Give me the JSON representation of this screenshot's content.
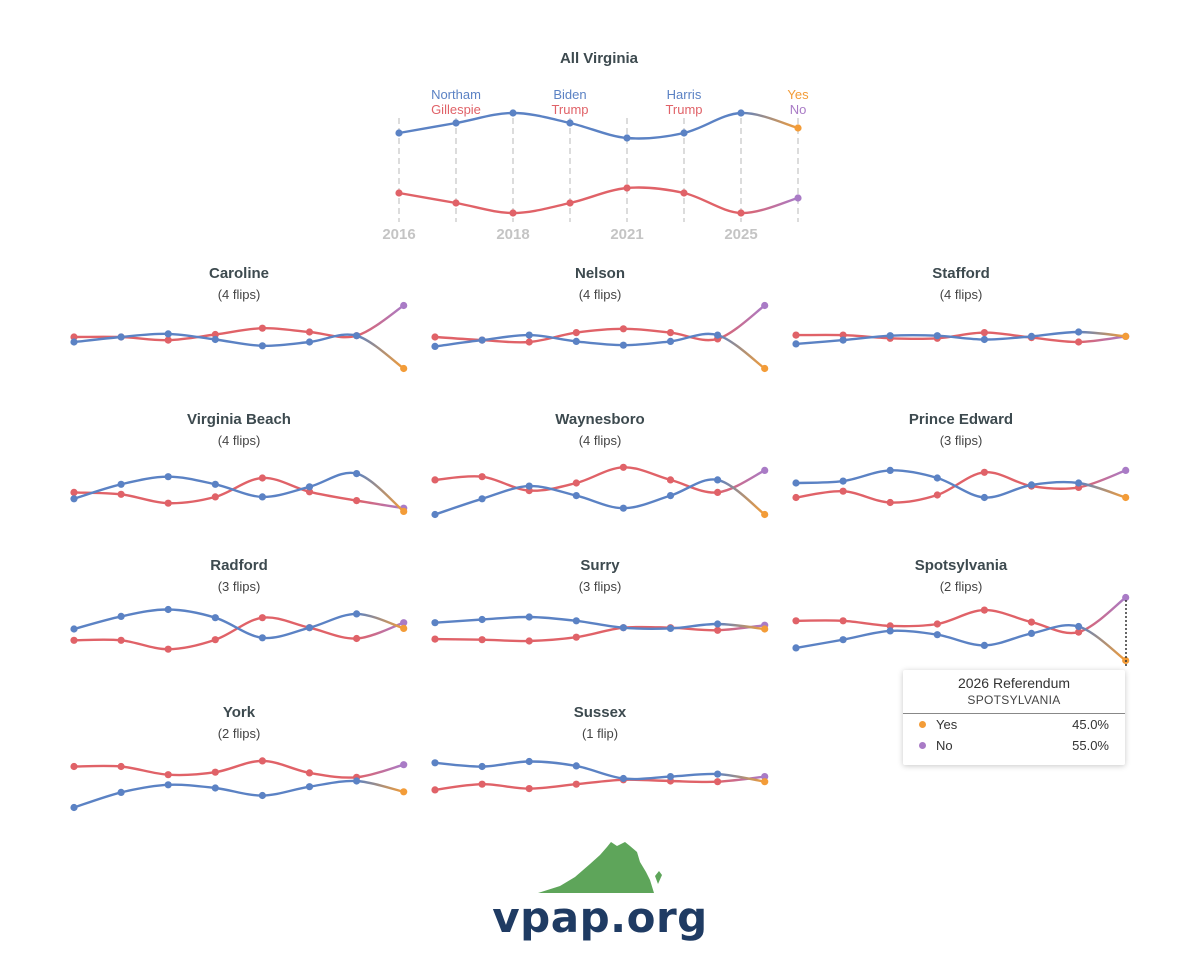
{
  "colors": {
    "dem": "#5b82c4",
    "rep": "#e06268",
    "yes": "#f39c38",
    "no": "#a97bc6"
  },
  "chart_data": {
    "type": "line",
    "overview": {
      "title": "All Virginia",
      "x": [
        2016,
        2017,
        2018,
        2019,
        2021,
        2022,
        2025,
        2026
      ],
      "tick_labels": [
        "2016",
        "2018",
        "2021",
        "2025"
      ],
      "contests": [
        {
          "top": "Northam",
          "bottom": "Gillespie"
        },
        {
          "top": "Biden",
          "bottom": "Trump"
        },
        {
          "top": "Harris",
          "bottom": "Trump"
        },
        {
          "top": "Yes",
          "bottom": "No"
        }
      ],
      "blue": [
        53,
        54,
        55,
        54,
        52.5,
        53,
        55,
        53.5
      ],
      "red": [
        47,
        46,
        45,
        46,
        47.5,
        47,
        45,
        46.5
      ]
    },
    "counties": [
      {
        "name": "Caroline",
        "flips": "(4 flips)",
        "blue": [
          49.2,
          50,
          50.5,
          49.6,
          48.6,
          49.2,
          50.2,
          45
        ],
        "red": [
          50,
          50,
          49.5,
          50.4,
          51.4,
          50.8,
          50.2,
          55
        ]
      },
      {
        "name": "Nelson",
        "flips": "(4 flips)",
        "blue": [
          48.5,
          49.5,
          50.3,
          49.3,
          48.7,
          49.3,
          50.3,
          45
        ],
        "red": [
          50,
          49.5,
          49.2,
          50.7,
          51.3,
          50.7,
          49.7,
          55
        ]
      },
      {
        "name": "Stafford",
        "flips": "(4 flips)",
        "blue": [
          48.9,
          49.5,
          50.2,
          50.2,
          49.6,
          50.1,
          50.8,
          50.1
        ],
        "red": [
          50.3,
          50.3,
          49.8,
          49.8,
          50.7,
          49.9,
          49.2,
          50.1
        ]
      },
      {
        "name": "Virginia Beach",
        "flips": "(4 flips)",
        "blue": [
          47.5,
          49.8,
          51,
          49.8,
          47.8,
          49.4,
          51.5,
          45.5
        ],
        "red": [
          48.5,
          48.2,
          46.8,
          47.8,
          50.8,
          48.6,
          47.2,
          46
        ]
      },
      {
        "name": "Waynesboro",
        "flips": "(4 flips)",
        "blue": [
          45,
          47.5,
          49.5,
          48,
          46,
          48,
          50.5,
          45
        ],
        "red": [
          50.5,
          51,
          48.8,
          50,
          52.5,
          50.5,
          48.5,
          52
        ]
      },
      {
        "name": "Prince Edward",
        "flips": "(3 flips)",
        "blue": [
          50,
          50.3,
          52,
          50.8,
          47.7,
          49.7,
          50,
          47.7
        ],
        "red": [
          47.7,
          48.7,
          46.9,
          48.1,
          51.7,
          49.5,
          49.3,
          52
        ]
      },
      {
        "name": "Radford",
        "flips": "(3 flips)",
        "blue": [
          50,
          52,
          53.1,
          51.8,
          48.6,
          50.2,
          52.4,
          50.1
        ],
        "red": [
          48.2,
          48.2,
          46.8,
          48.3,
          51.8,
          50.2,
          48.5,
          51
        ]
      },
      {
        "name": "Surry",
        "flips": "(3 flips)",
        "blue": [
          51,
          51.5,
          51.9,
          51.3,
          50.2,
          50.1,
          50.8,
          50
        ],
        "red": [
          48.4,
          48.3,
          48.1,
          48.7,
          50.2,
          50.2,
          49.8,
          50.6
        ]
      },
      {
        "name": "Spotsylvania",
        "flips": "(2 flips)",
        "blue": [
          47,
          48.3,
          49.7,
          49.1,
          47.4,
          49.3,
          50.4,
          45
        ],
        "red": [
          51.3,
          51.3,
          50.5,
          50.8,
          53,
          51.1,
          49.5,
          55
        ]
      },
      {
        "name": "York",
        "flips": "(2 flips)",
        "blue": [
          45,
          47.4,
          48.6,
          48.1,
          46.9,
          48.3,
          49.2,
          47.5
        ],
        "red": [
          51.5,
          51.5,
          50.2,
          50.6,
          52.4,
          50.5,
          49.8,
          51.8
        ]
      },
      {
        "name": "Sussex",
        "flips": "(1 flip)",
        "blue": [
          52.1,
          51.5,
          52.3,
          51.6,
          49.6,
          49.9,
          50.3,
          49.1
        ],
        "red": [
          47.8,
          48.7,
          48,
          48.7,
          49.4,
          49.2,
          49.1,
          49.9
        ]
      }
    ]
  },
  "tooltip": {
    "title": "2026 Referendum",
    "subtitle": "SPOTSYLVANIA",
    "rows": [
      {
        "label": "Yes",
        "value": "45.0%"
      },
      {
        "label": "No",
        "value": "55.0%"
      }
    ]
  },
  "logo": {
    "text": "vpap.org",
    "icon": "virginia-map-icon"
  }
}
